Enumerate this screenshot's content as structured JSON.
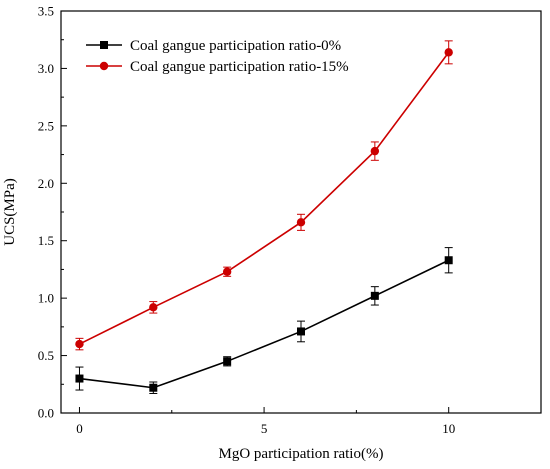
{
  "chart_data": {
    "type": "line",
    "xlabel": "MgO participation ratio(%)",
    "ylabel": "UCS(MPa)",
    "xlim": [
      -0.5,
      12.5
    ],
    "ylim": [
      0,
      3.5
    ],
    "x_ticks": [
      0,
      5,
      10
    ],
    "y_ticks": [
      0.0,
      0.5,
      1.0,
      1.5,
      2.0,
      2.5,
      3.0,
      3.5
    ],
    "x_tick_labels": [
      "0",
      "5",
      "10"
    ],
    "y_tick_labels": [
      "0.0",
      "0.5",
      "1.0",
      "1.5",
      "2.0",
      "2.5",
      "3.0",
      "3.5"
    ],
    "legend_position": "top-left",
    "grid": false,
    "series": [
      {
        "name": "Coal gangue participation ratio-0%",
        "color": "#000000",
        "marker": "square",
        "x": [
          0,
          2,
          4,
          6,
          8,
          10
        ],
        "y": [
          0.3,
          0.22,
          0.45,
          0.71,
          1.02,
          1.33
        ],
        "error": [
          0.1,
          0.05,
          0.04,
          0.09,
          0.08,
          0.11
        ]
      },
      {
        "name": "Coal gangue participation ratio-15%",
        "color": "#cc0000",
        "marker": "circle",
        "x": [
          0,
          2,
          4,
          6,
          8,
          10
        ],
        "y": [
          0.6,
          0.92,
          1.23,
          1.66,
          2.28,
          3.14
        ],
        "error": [
          0.05,
          0.05,
          0.04,
          0.07,
          0.08,
          0.1
        ]
      }
    ]
  }
}
